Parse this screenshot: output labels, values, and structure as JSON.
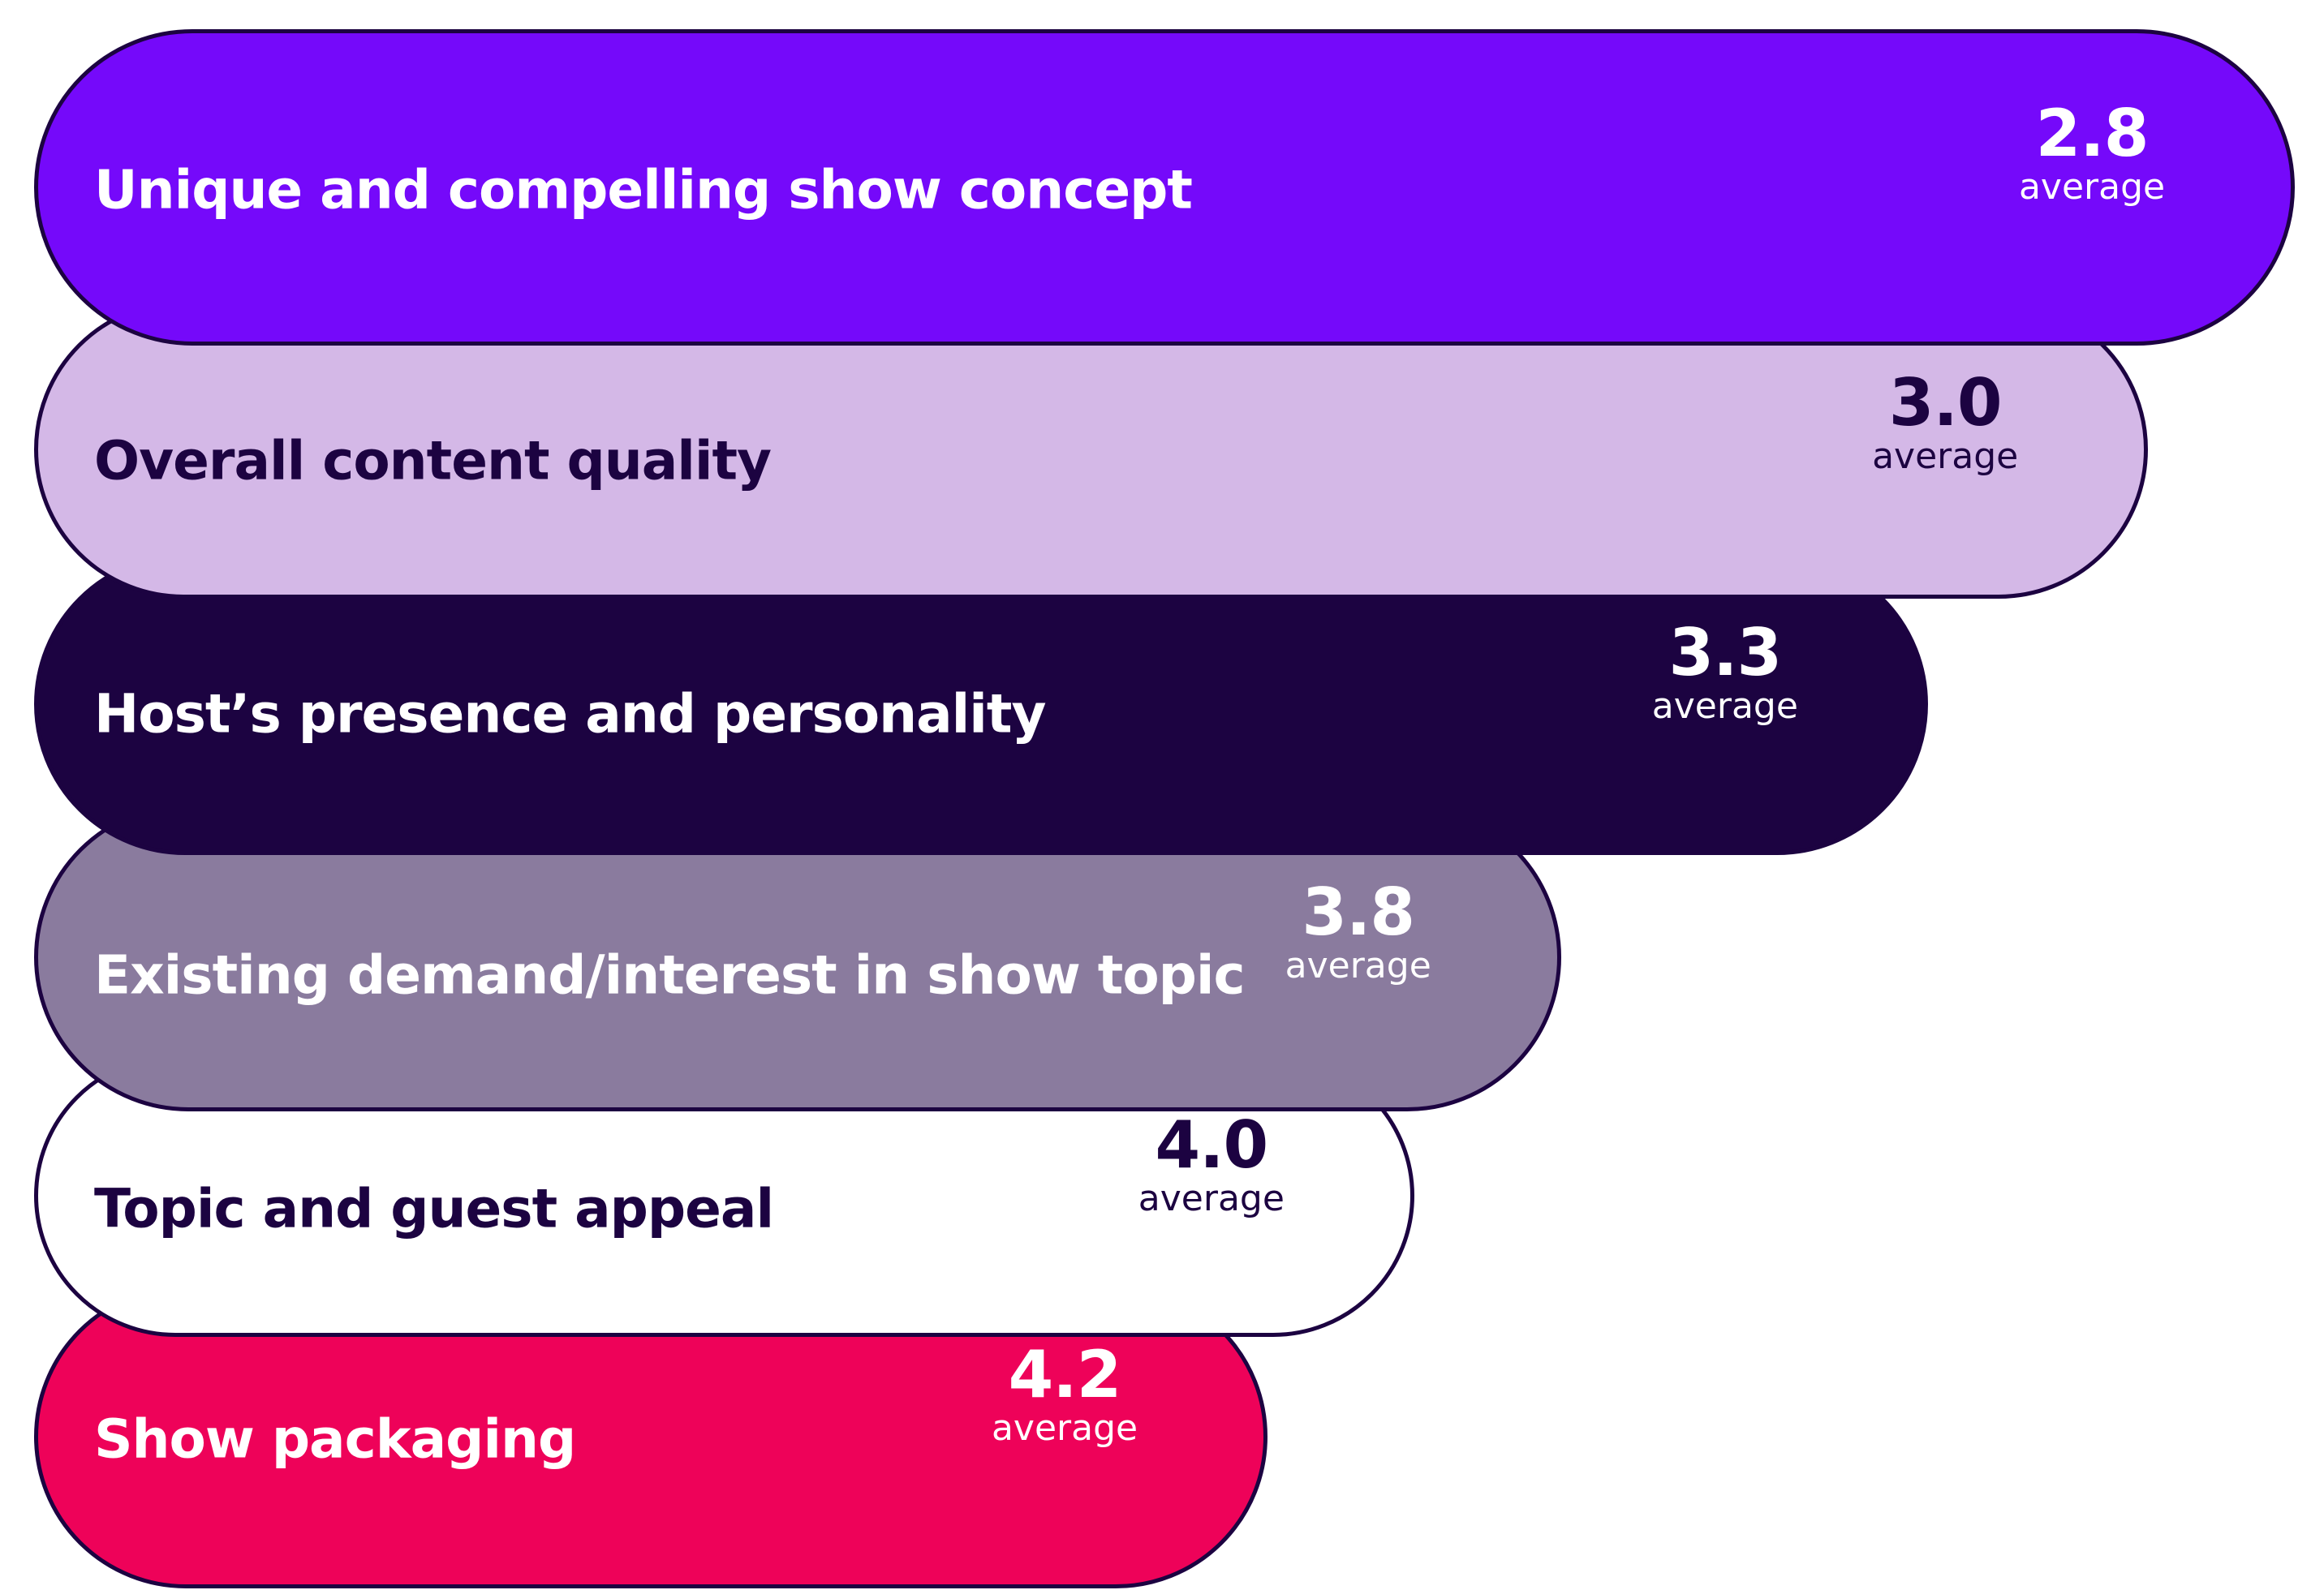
{
  "chart_data": {
    "type": "bar",
    "orientation": "horizontal",
    "categories": [
      "Unique and compelling show concept",
      "Overall content quality",
      "Host’s presence and personality",
      "Existing demand/interest in show topic",
      "Topic and guest appeal",
      "Show packaging"
    ],
    "values": [
      2.8,
      3.0,
      3.3,
      3.8,
      4.0,
      4.2
    ],
    "value_labels": [
      "2.8",
      "3.0",
      "3.3",
      "3.8",
      "4.0",
      "4.2"
    ],
    "value_unit_label": "average",
    "bar_colors": [
      "#7509fa",
      "#d4b8e7",
      "#1c0341",
      "#8a7b9e",
      "#ffffff",
      "#ee0259"
    ],
    "text_colors": [
      "#ffffff",
      "#1c0341",
      "#ffffff",
      "#ffffff",
      "#1c0341",
      "#ffffff"
    ],
    "border_color": "#1c0341",
    "bar_length_order": "longest bar for lowest value",
    "title": "",
    "xlabel": "",
    "ylabel": "",
    "grid": false,
    "legend": "none"
  }
}
